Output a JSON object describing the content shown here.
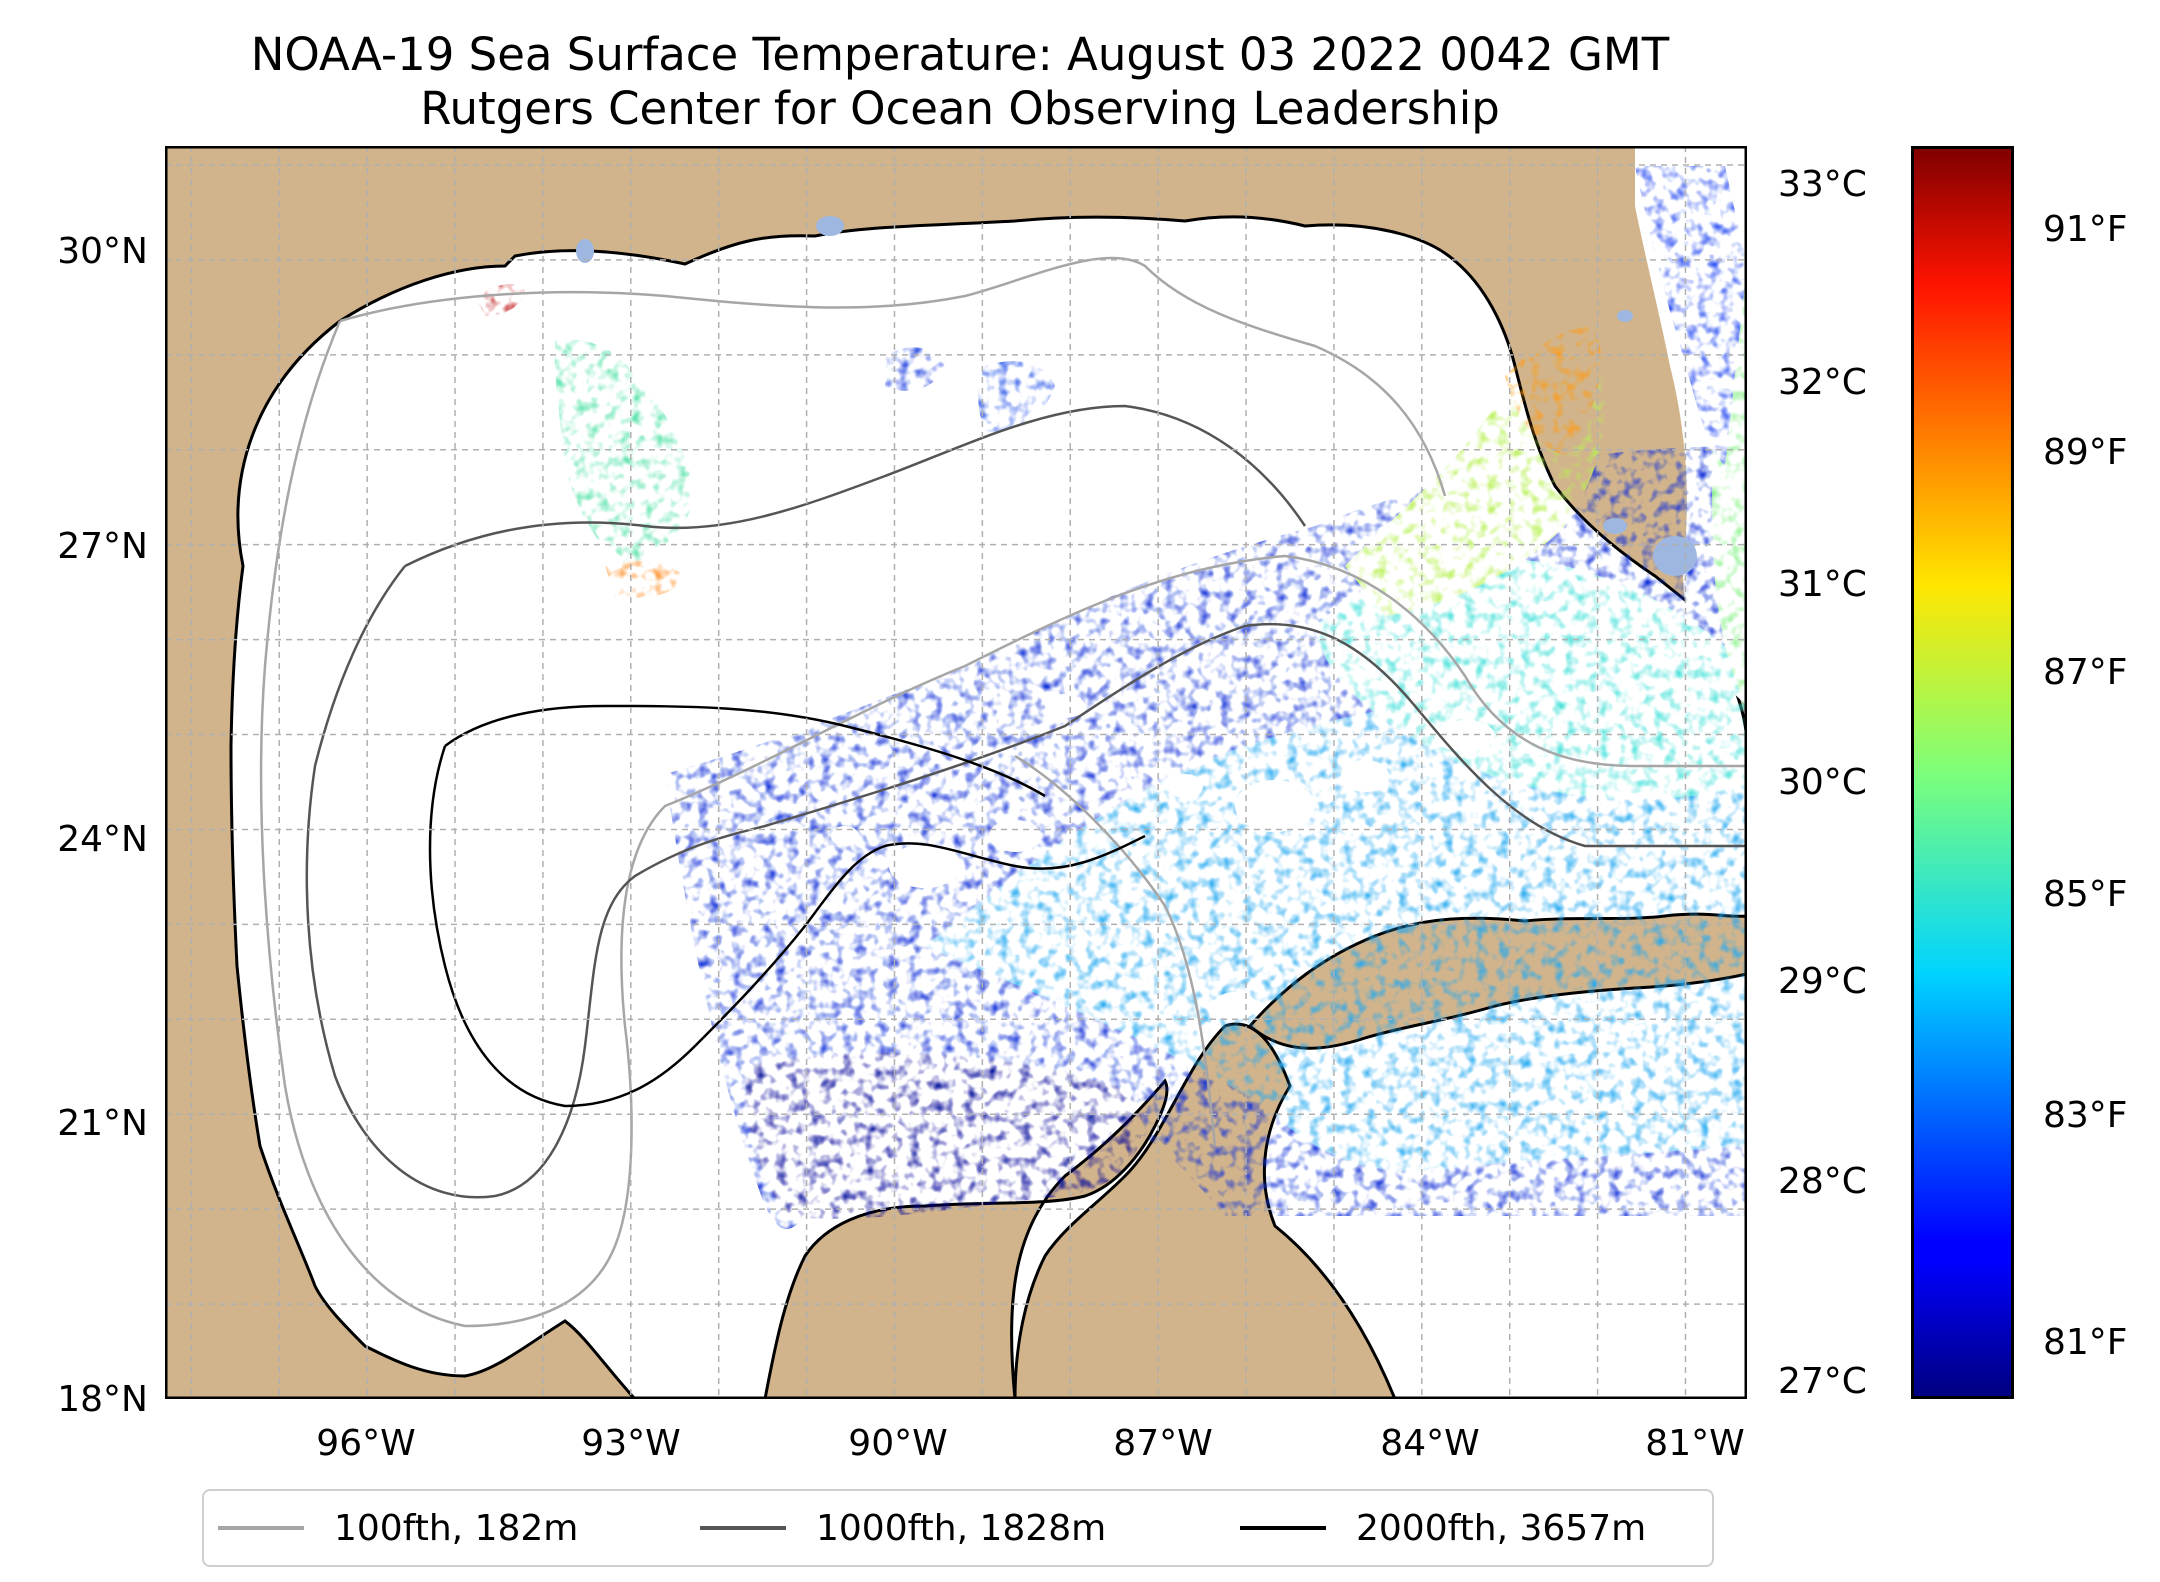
{
  "title": {
    "line1": "NOAA-19 Sea Surface Temperature: August 03 2022 0042 GMT",
    "line2": "Rutgers Center for Ocean Observing Leadership"
  },
  "map": {
    "lon_range": [
      -98.3,
      -80.3
    ],
    "lat_range": [
      18,
      31.2
    ],
    "lat_labels": [
      "30°N",
      "27°N",
      "24°N",
      "21°N",
      "18°N"
    ],
    "lon_labels": [
      "96°W",
      "93°W",
      "90°W",
      "87°W",
      "84°W",
      "81°W"
    ],
    "gridlines": true,
    "colors": {
      "land": "#d2b48c",
      "lakes": "#9db7e0",
      "no_data": "#ffffff",
      "coastline": "#000000",
      "gridline": "#b0b0b0"
    }
  },
  "colorbar": {
    "colormap": "jet",
    "celsius_labels": [
      "33°C",
      "32°C",
      "31°C",
      "30°C",
      "29°C",
      "28°C",
      "27°C"
    ],
    "fahrenheit_labels": [
      "91°F",
      "89°F",
      "87°F",
      "85°F",
      "83°F",
      "81°F"
    ],
    "celsius_range": [
      26.9,
      33.2
    ]
  },
  "legend": {
    "location": "below map",
    "items": [
      {
        "label": "100fth, 182m",
        "color": "#a6a6a6"
      },
      {
        "label": "1000fth, 1828m",
        "color": "#555555"
      },
      {
        "label": "2000fth, 3657m",
        "color": "#000000"
      }
    ]
  }
}
